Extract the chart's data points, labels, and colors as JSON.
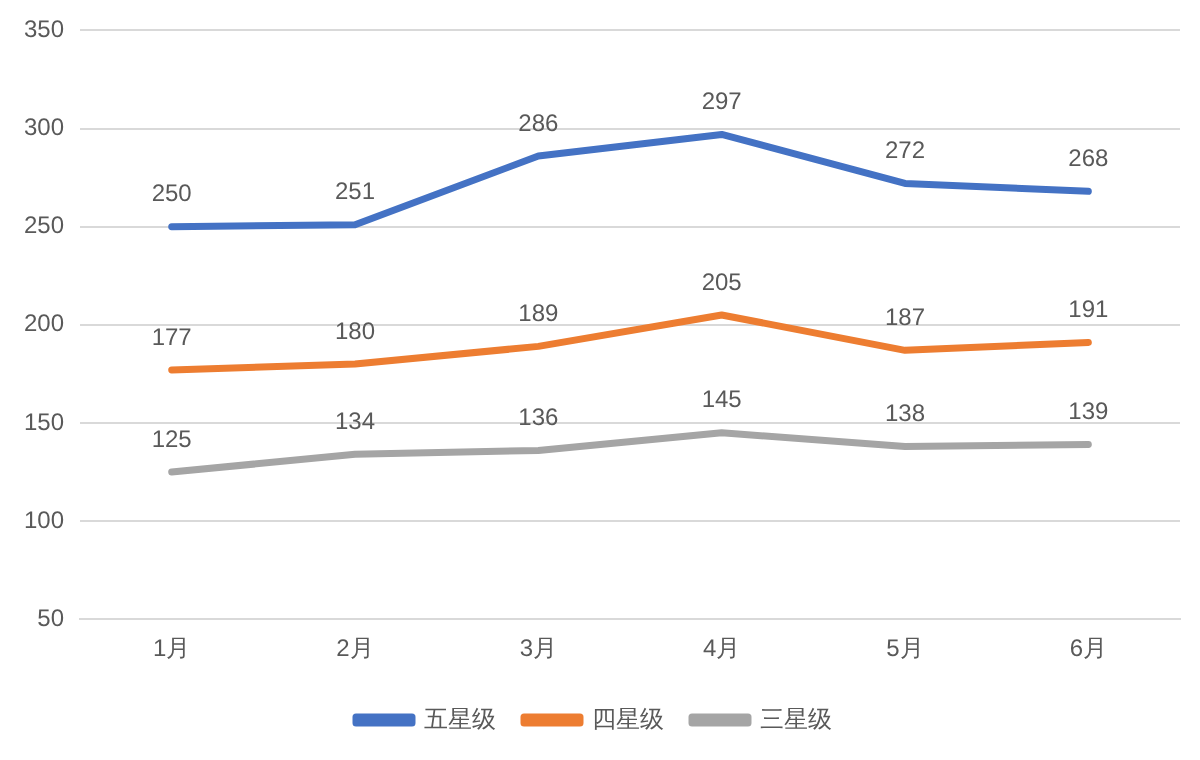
{
  "chart_data": {
    "type": "line",
    "categories": [
      "1月",
      "2月",
      "3月",
      "4月",
      "5月",
      "6月"
    ],
    "series": [
      {
        "name": "五星级",
        "color": "#4472c4",
        "values": [
          250,
          251,
          286,
          297,
          272,
          268
        ]
      },
      {
        "name": "四星级",
        "color": "#ed7d31",
        "values": [
          177,
          180,
          189,
          205,
          187,
          191
        ]
      },
      {
        "name": "三星级",
        "color": "#a5a5a5",
        "values": [
          125,
          134,
          136,
          145,
          138,
          139
        ]
      }
    ],
    "ylim": [
      50,
      350
    ],
    "yticks": [
      50,
      100,
      150,
      200,
      250,
      300,
      350
    ],
    "grid": "y",
    "legend": "bottom",
    "marker": "none",
    "line_style": "solid",
    "data_labels": true
  }
}
